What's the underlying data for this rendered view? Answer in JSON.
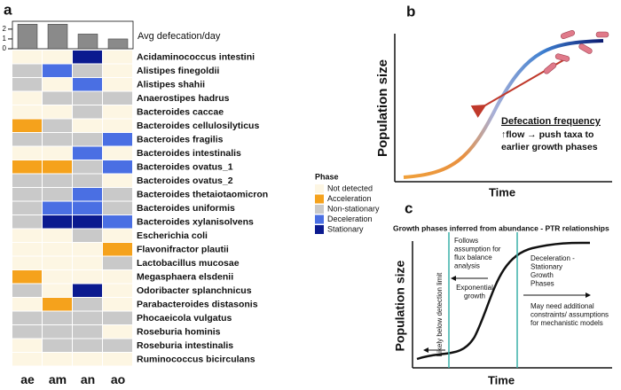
{
  "chart_data": [
    {
      "type": "bar",
      "panel": "a",
      "ylabel": "Avg defecation/day",
      "categories": [
        "ae",
        "am",
        "an",
        "ao"
      ],
      "values": [
        2.5,
        2.5,
        1.5,
        1.0
      ],
      "color": "#8a8a8a",
      "ylim": [
        0,
        2.8
      ],
      "yticks": [
        0,
        1,
        2
      ]
    },
    {
      "type": "heatmap",
      "legend_title": "Phase",
      "phases": [
        {
          "name": "Not detected",
          "color": "#fdf6e3"
        },
        {
          "name": "Acceleration",
          "color": "#f5a21c"
        },
        {
          "name": "Non-stationary",
          "color": "#c9c9c9"
        },
        {
          "name": "Deceleration",
          "color": "#4a6fe3"
        },
        {
          "name": "Stationary",
          "color": "#0b1a8f"
        }
      ],
      "columns": [
        "ae",
        "am",
        "an",
        "ao"
      ],
      "rows": [
        "Acidaminococcus intestini",
        "Alistipes finegoldii",
        "Alistipes shahii",
        "Anaerostipes hadrus",
        "Bacteroides caccae",
        "Bacteroides cellulosilyticus",
        "Bacteroides fragilis",
        "Bacteroides intestinalis",
        "Bacteroides ovatus_1",
        "Bacteroides ovatus_2",
        "Bacteroides thetaiotaomicron",
        "Bacteroides uniformis",
        "Bacteroides xylanisolvens",
        "Escherichia coli",
        "Flavonifractor plautii",
        "Lactobacillus mucosae",
        "Megasphaera elsdenii",
        "Odoribacter splanchnicus",
        "Parabacteroides distasonis",
        "Phocaeicola vulgatus",
        "Roseburia hominis",
        "Roseburia intestinalis",
        "Ruminococcus bicirculans"
      ],
      "values": [
        [
          0,
          0,
          4,
          0
        ],
        [
          2,
          3,
          2,
          0
        ],
        [
          2,
          0,
          3,
          0
        ],
        [
          0,
          2,
          2,
          2
        ],
        [
          0,
          0,
          2,
          0
        ],
        [
          1,
          2,
          0,
          0
        ],
        [
          2,
          2,
          2,
          3
        ],
        [
          0,
          0,
          3,
          0
        ],
        [
          1,
          1,
          2,
          3
        ],
        [
          2,
          2,
          2,
          0
        ],
        [
          2,
          2,
          3,
          2
        ],
        [
          2,
          3,
          3,
          2
        ],
        [
          2,
          4,
          4,
          3
        ],
        [
          0,
          0,
          2,
          0
        ],
        [
          0,
          0,
          0,
          1
        ],
        [
          0,
          0,
          0,
          2
        ],
        [
          1,
          0,
          0,
          0
        ],
        [
          2,
          0,
          4,
          0
        ],
        [
          0,
          1,
          2,
          0
        ],
        [
          2,
          2,
          2,
          2
        ],
        [
          2,
          2,
          2,
          0
        ],
        [
          0,
          2,
          2,
          2
        ],
        [
          0,
          0,
          0,
          0
        ]
      ]
    }
  ],
  "panel_b": {
    "label": "b",
    "ylabel": "Population size",
    "xlabel": "Time",
    "heading": "Defecation frequency",
    "lines": [
      "↑flow → push taxa to",
      "earlier growth phases"
    ]
  },
  "panel_c": {
    "label": "c",
    "title": "Growth phases inferred from abundance - PTR relationships",
    "ylabel": "Population size",
    "xlabel": "Time",
    "left_note": [
      "Follows",
      "assumption for",
      "flux balance",
      "analysis"
    ],
    "exp": [
      "Exponential",
      "growth"
    ],
    "right_note": [
      "Deceleration -",
      "Stationary",
      "Growth",
      "Phases"
    ],
    "model_note": [
      "May need additional",
      "constraints/ assumptions",
      "for mechanistic models"
    ],
    "detection": "Likely below detection limit"
  }
}
